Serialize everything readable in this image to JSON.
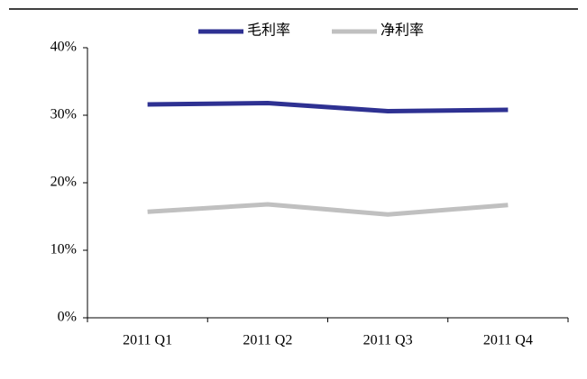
{
  "chart_data": {
    "type": "line",
    "categories": [
      "2011 Q1",
      "2011 Q2",
      "2011 Q3",
      "2011 Q4"
    ],
    "series": [
      {
        "name": "毛利率",
        "color": "#2e3192",
        "values": [
          31.6,
          31.8,
          30.6,
          30.8
        ]
      },
      {
        "name": "净利率",
        "color": "#c0c0c0",
        "values": [
          15.7,
          16.8,
          15.3,
          16.7
        ]
      }
    ],
    "ylim": [
      0,
      40
    ],
    "yticks": [
      {
        "value": 0,
        "label": "0%"
      },
      {
        "value": 10,
        "label": "10%"
      },
      {
        "value": 20,
        "label": "20%"
      },
      {
        "value": 30,
        "label": "30%"
      },
      {
        "value": 40,
        "label": "40%"
      }
    ],
    "legend": "top",
    "grid": false
  }
}
